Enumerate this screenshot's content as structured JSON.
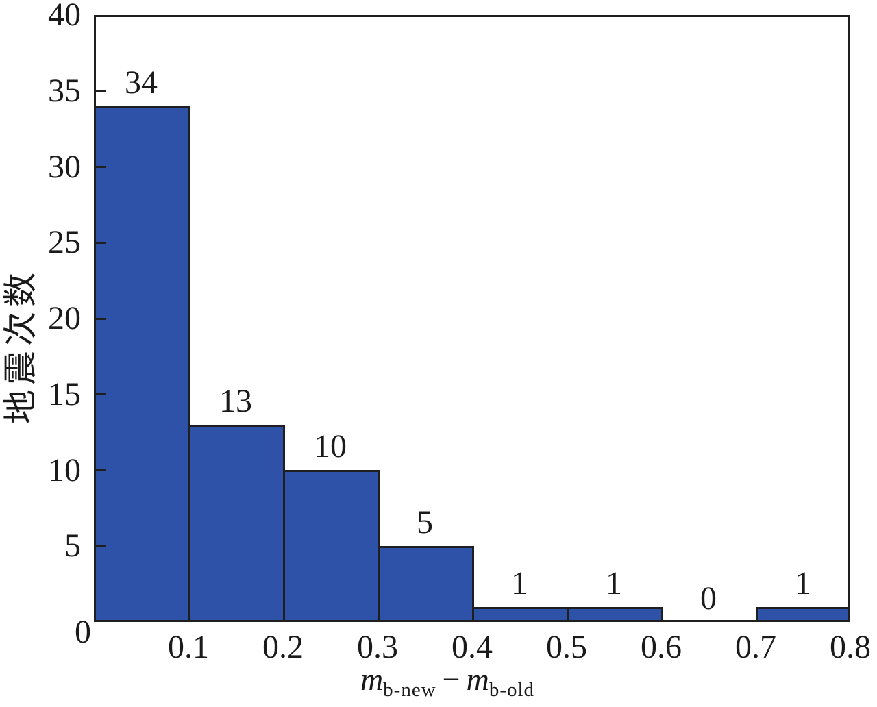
{
  "figure": {
    "background": "#ffffff",
    "text_color": "#1a1a1a",
    "line_color": "#1f1f1f"
  },
  "chart_data": {
    "type": "bar",
    "subtype": "histogram",
    "title": "",
    "ylabel": "地震次数",
    "xlabel": {
      "plain": "m b-new − m b-old",
      "var1": "m",
      "sub1": "b-new",
      "operator": "−",
      "var2": "m",
      "sub2": "b-old"
    },
    "categories": [
      "0–0.1",
      "0.1–0.2",
      "0.2–0.3",
      "0.3–0.4",
      "0.4–0.5",
      "0.5–0.6",
      "0.6–0.7",
      "0.7–0.8"
    ],
    "values": [
      34,
      13,
      10,
      5,
      1,
      1,
      0,
      1
    ],
    "bar_labels": [
      "34",
      "13",
      "10",
      "5",
      "1",
      "1",
      "0",
      "1"
    ],
    "bin_width": 0.1,
    "x_tick_labels": [
      "0.1",
      "0.2",
      "0.3",
      "0.4",
      "0.5",
      "0.6",
      "0.7",
      "0.8"
    ],
    "origin_tick_label": "0",
    "y_tick_values": [
      0,
      5,
      10,
      15,
      20,
      25,
      30,
      35,
      40
    ],
    "y_tick_labels": [
      "0",
      "5",
      "10",
      "15",
      "20",
      "25",
      "30",
      "35",
      "40"
    ],
    "xlim": [
      0,
      0.8
    ],
    "ylim": [
      0,
      40
    ],
    "grid": false,
    "legend": null,
    "bar_color": "#2d52a8",
    "edge_color": "#1f1f1f"
  }
}
